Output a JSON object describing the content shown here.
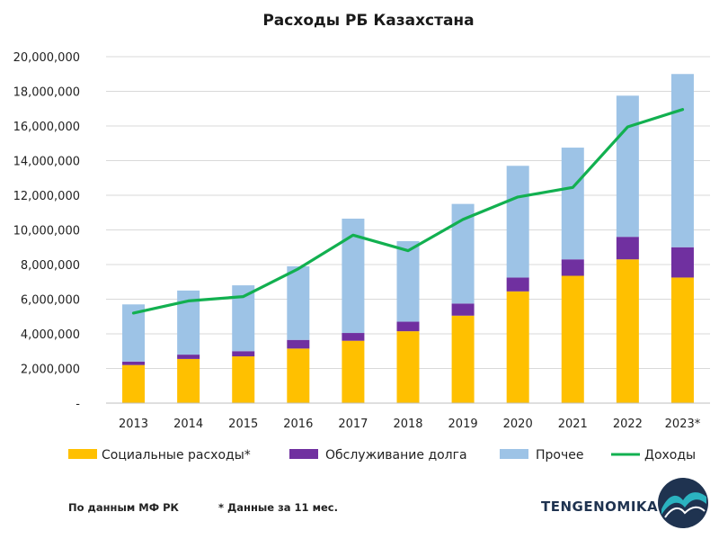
{
  "chart_data": {
    "type": "bar",
    "stacked": true,
    "title": "Расходы РБ Казахстана",
    "categories": [
      "2013",
      "2014",
      "2015",
      "2016",
      "2017",
      "2018",
      "2019",
      "2020",
      "2021",
      "2022",
      "2023*"
    ],
    "ylim": [
      0,
      20000000
    ],
    "yticks": [
      {
        "value": 0,
        "label": "-"
      },
      {
        "value": 2000000,
        "label": "2,000,000"
      },
      {
        "value": 4000000,
        "label": "4,000,000"
      },
      {
        "value": 6000000,
        "label": "6,000,000"
      },
      {
        "value": 8000000,
        "label": "8,000,000"
      },
      {
        "value": 10000000,
        "label": "10,000,000"
      },
      {
        "value": 12000000,
        "label": "12,000,000"
      },
      {
        "value": 14000000,
        "label": "14,000,000"
      },
      {
        "value": 16000000,
        "label": "16,000,000"
      },
      {
        "value": 18000000,
        "label": "18,000,000"
      },
      {
        "value": 20000000,
        "label": "20,000,000"
      }
    ],
    "grid": true,
    "legend_position": "bottom",
    "series": [
      {
        "name": "Социальные расходы*",
        "kind": "bar",
        "color": "#ffc000",
        "values": [
          2200000,
          2550000,
          2700000,
          3150000,
          3600000,
          4150000,
          5050000,
          6450000,
          7350000,
          8300000,
          7250000
        ]
      },
      {
        "name": "Обслуживание долга",
        "kind": "bar",
        "color": "#7030a0",
        "values": [
          200000,
          250000,
          300000,
          500000,
          450000,
          550000,
          700000,
          800000,
          950000,
          1300000,
          1750000
        ]
      },
      {
        "name": "Прочее",
        "kind": "bar",
        "color": "#9dc3e6",
        "values": [
          3300000,
          3700000,
          3800000,
          4250000,
          6600000,
          4650000,
          5750000,
          6450000,
          6450000,
          8150000,
          10000000
        ]
      },
      {
        "name": "Доходы",
        "kind": "line",
        "color": "#12b050",
        "values": [
          5200000,
          5900000,
          6150000,
          7750000,
          9700000,
          8800000,
          10600000,
          11900000,
          12450000,
          15950000,
          16950000
        ]
      }
    ]
  },
  "footer": {
    "source": "По данным МФ РК",
    "note": "* Данные  за 11 мес.",
    "brand": "TENGENOMIKA"
  }
}
